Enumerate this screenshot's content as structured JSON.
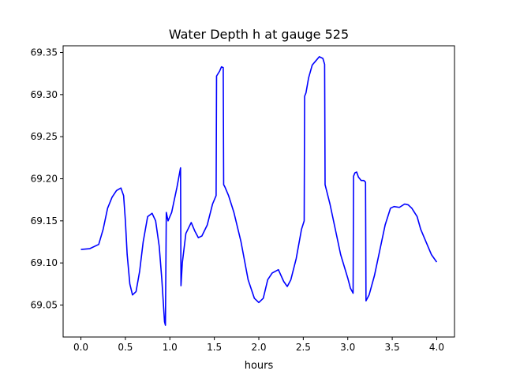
{
  "chart_data": {
    "type": "line",
    "title": "Water Depth h at gauge 525",
    "xlabel": "hours",
    "ylabel": "",
    "xlim": [
      -0.2,
      4.2
    ],
    "ylim": [
      69.012,
      69.358
    ],
    "xticks": [
      0.0,
      0.5,
      1.0,
      1.5,
      2.0,
      2.5,
      3.0,
      3.5,
      4.0
    ],
    "xtick_labels": [
      "0.0",
      "0.5",
      "1.0",
      "1.5",
      "2.0",
      "2.5",
      "3.0",
      "3.5",
      "4.0"
    ],
    "yticks": [
      69.05,
      69.1,
      69.15,
      69.2,
      69.25,
      69.3,
      69.35
    ],
    "ytick_labels": [
      "69.05",
      "69.10",
      "69.15",
      "69.20",
      "69.25",
      "69.30",
      "69.35"
    ],
    "grid": false,
    "series": [
      {
        "color": "#0000ff",
        "x": [
          0.0,
          0.1,
          0.2,
          0.25,
          0.3,
          0.35,
          0.4,
          0.45,
          0.48,
          0.5,
          0.52,
          0.55,
          0.58,
          0.62,
          0.66,
          0.7,
          0.75,
          0.8,
          0.84,
          0.88,
          0.91,
          0.94,
          0.95,
          0.96,
          0.98,
          1.0,
          1.02,
          1.04,
          1.08,
          1.12,
          1.125,
          1.14,
          1.18,
          1.24,
          1.28,
          1.32,
          1.36,
          1.42,
          1.48,
          1.52,
          1.525,
          1.56,
          1.58,
          1.6,
          1.605,
          1.62,
          1.66,
          1.72,
          1.8,
          1.88,
          1.95,
          2.0,
          2.05,
          2.1,
          2.15,
          2.22,
          2.28,
          2.32,
          2.36,
          2.42,
          2.48,
          2.51,
          2.515,
          2.53,
          2.56,
          2.6,
          2.64,
          2.68,
          2.72,
          2.74,
          2.745,
          2.8,
          2.86,
          2.92,
          3.0,
          3.03,
          3.06,
          3.065,
          3.08,
          3.1,
          3.12,
          3.15,
          3.18,
          3.2,
          3.205,
          3.24,
          3.3,
          3.36,
          3.42,
          3.48,
          3.52,
          3.58,
          3.64,
          3.68,
          3.72,
          3.78,
          3.82,
          3.86,
          3.9,
          3.94,
          4.0
        ],
        "y": [
          69.116,
          69.117,
          69.122,
          69.14,
          69.165,
          69.178,
          69.186,
          69.189,
          69.18,
          69.15,
          69.11,
          69.075,
          69.062,
          69.066,
          69.09,
          69.125,
          69.155,
          69.159,
          69.15,
          69.12,
          69.08,
          69.03,
          69.026,
          69.16,
          69.15,
          69.155,
          69.16,
          69.17,
          69.19,
          69.213,
          69.073,
          69.1,
          69.135,
          69.148,
          69.138,
          69.13,
          69.132,
          69.145,
          69.17,
          69.18,
          69.322,
          69.328,
          69.333,
          69.332,
          69.193,
          69.19,
          69.18,
          69.16,
          69.125,
          69.08,
          69.058,
          69.053,
          69.058,
          69.08,
          69.088,
          69.092,
          69.078,
          69.072,
          69.08,
          69.105,
          69.14,
          69.15,
          69.298,
          69.302,
          69.32,
          69.335,
          69.34,
          69.345,
          69.343,
          69.336,
          69.193,
          69.17,
          69.14,
          69.11,
          69.082,
          69.07,
          69.064,
          69.203,
          69.207,
          69.208,
          69.202,
          69.198,
          69.198,
          69.196,
          69.055,
          69.062,
          69.085,
          69.115,
          69.145,
          69.165,
          69.167,
          69.166,
          69.17,
          69.169,
          69.165,
          69.155,
          69.14,
          69.13,
          69.12,
          69.11,
          69.101
        ]
      }
    ]
  }
}
